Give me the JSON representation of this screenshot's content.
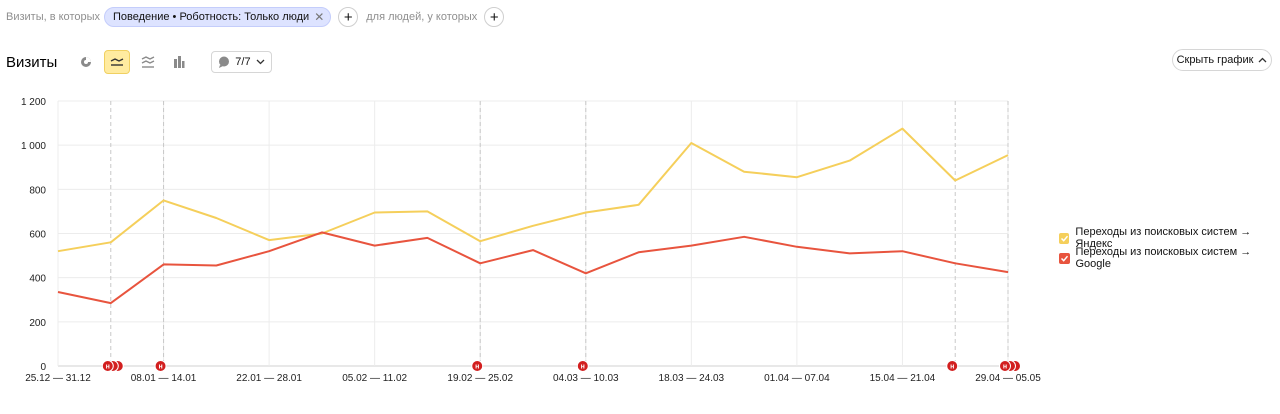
{
  "filter": {
    "prefix": "Визиты, в которых",
    "chip_label": "Поведение • Роботность: Только люди",
    "suffix": "для людей, у которых"
  },
  "toolbar": {
    "title": "Визиты",
    "annotations_count": "7/7",
    "hide_chart_label": "Скрыть график"
  },
  "colors": {
    "yandex": "#f5cf5b",
    "google": "#e8543e",
    "annotation": "#d21f1f",
    "active_view": "#ffeba0"
  },
  "icons": [
    "pie-chart-icon",
    "line-chart-icon",
    "stacked-area-icon",
    "bar-chart-icon",
    "comment-icon",
    "chevron-down-icon",
    "chevron-up-icon",
    "plus-icon",
    "close-icon"
  ],
  "chart_data": {
    "type": "line",
    "x_ticks": [
      "25.12 — 31.12",
      "08.01 — 14.01",
      "22.01 — 28.01",
      "05.02 — 11.02",
      "19.02 — 25.02",
      "04.03 — 10.03",
      "18.03 — 24.03",
      "01.04 — 07.04",
      "15.04 — 21.04",
      "29.04 — 05.05"
    ],
    "y_ticks": [
      "0",
      "200",
      "400",
      "600",
      "800",
      "1 000",
      "1 200"
    ],
    "ylim": [
      0,
      1200
    ],
    "grid": true,
    "legend_position": "right",
    "series": [
      {
        "name": "Переходы из поисковых систем → Яндекс",
        "color": "#f5cf5b",
        "values": [
          520,
          560,
          750,
          670,
          570,
          600,
          695,
          700,
          565,
          635,
          695,
          730,
          1010,
          880,
          855,
          930,
          1075,
          840,
          955
        ]
      },
      {
        "name": "Переходы из поисковых систем → Google",
        "color": "#e8543e",
        "values": [
          335,
          285,
          460,
          455,
          520,
          605,
          545,
          580,
          465,
          525,
          420,
          515,
          545,
          585,
          540,
          510,
          520,
          465,
          425
        ]
      }
    ],
    "annotations": [
      {
        "x_index": 1,
        "count": 3
      },
      {
        "x_index": 2,
        "count": 1
      },
      {
        "x_index": 8,
        "count": 1
      },
      {
        "x_index": 10,
        "count": 1
      },
      {
        "x_index": 17,
        "count": 1
      },
      {
        "x_index": 18,
        "count": 3
      }
    ],
    "annotation_label": "н"
  }
}
